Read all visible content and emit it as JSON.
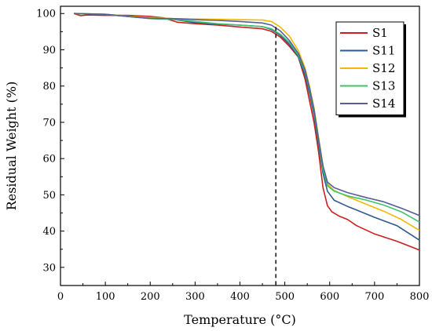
{
  "chart_data": {
    "type": "line",
    "xlabel": "Temperature (°C)",
    "ylabel": "Residual Weight (%)",
    "xlim": [
      0,
      800
    ],
    "ylim": [
      25,
      102
    ],
    "xticks": [
      0,
      100,
      200,
      300,
      400,
      500,
      600,
      700,
      800
    ],
    "yticks": [
      30,
      40,
      50,
      60,
      70,
      80,
      90,
      100
    ],
    "grid": false,
    "legend_position": "top-right",
    "reference_line": {
      "x": 480,
      "style": "dashed",
      "color": "#000000"
    },
    "series": [
      {
        "name": "S1",
        "color": "#cc1f1f",
        "points": [
          [
            30,
            100
          ],
          [
            45,
            99.4
          ],
          [
            60,
            99.6
          ],
          [
            100,
            99.5
          ],
          [
            150,
            99.5
          ],
          [
            200,
            99.2
          ],
          [
            230,
            98.8
          ],
          [
            260,
            97.6
          ],
          [
            300,
            97.2
          ],
          [
            350,
            96.8
          ],
          [
            400,
            96.3
          ],
          [
            450,
            95.8
          ],
          [
            470,
            95.1
          ],
          [
            490,
            93.5
          ],
          [
            510,
            91
          ],
          [
            530,
            88
          ],
          [
            545,
            82
          ],
          [
            555,
            76
          ],
          [
            565,
            70
          ],
          [
            575,
            62
          ],
          [
            585,
            52
          ],
          [
            595,
            47
          ],
          [
            605,
            45.3
          ],
          [
            620,
            44.2
          ],
          [
            640,
            43.2
          ],
          [
            660,
            41.5
          ],
          [
            700,
            39.2
          ],
          [
            750,
            37.2
          ],
          [
            800,
            34.8
          ]
        ]
      },
      {
        "name": "S11",
        "color": "#2e5a8f",
        "points": [
          [
            30,
            100
          ],
          [
            100,
            99.7
          ],
          [
            150,
            99.2
          ],
          [
            200,
            98.6
          ],
          [
            250,
            98.4
          ],
          [
            300,
            97.5
          ],
          [
            350,
            97.1
          ],
          [
            400,
            96.8
          ],
          [
            450,
            96.4
          ],
          [
            470,
            95.6
          ],
          [
            490,
            94
          ],
          [
            510,
            91.5
          ],
          [
            530,
            88
          ],
          [
            545,
            83
          ],
          [
            555,
            78
          ],
          [
            565,
            72
          ],
          [
            575,
            64
          ],
          [
            585,
            56
          ],
          [
            595,
            51
          ],
          [
            610,
            48.5
          ],
          [
            640,
            46.8
          ],
          [
            660,
            45.8
          ],
          [
            700,
            43.8
          ],
          [
            750,
            41.5
          ],
          [
            800,
            37.5
          ]
        ]
      },
      {
        "name": "S12",
        "color": "#f0b800",
        "points": [
          [
            30,
            100
          ],
          [
            100,
            99.8
          ],
          [
            150,
            99.3
          ],
          [
            200,
            98.9
          ],
          [
            250,
            98.6
          ],
          [
            300,
            98.5
          ],
          [
            350,
            98.4
          ],
          [
            400,
            98.3
          ],
          [
            450,
            98.2
          ],
          [
            470,
            97.8
          ],
          [
            490,
            96.3
          ],
          [
            510,
            93.8
          ],
          [
            530,
            89.8
          ],
          [
            545,
            85
          ],
          [
            555,
            80
          ],
          [
            565,
            74
          ],
          [
            575,
            66
          ],
          [
            585,
            58
          ],
          [
            595,
            53
          ],
          [
            610,
            51.2
          ],
          [
            640,
            49.5
          ],
          [
            680,
            47.5
          ],
          [
            720,
            45.5
          ],
          [
            760,
            43.2
          ],
          [
            800,
            40.2
          ]
        ]
      },
      {
        "name": "S13",
        "color": "#3cc46a",
        "points": [
          [
            30,
            100
          ],
          [
            100,
            99.8
          ],
          [
            150,
            99.2
          ],
          [
            200,
            98.6
          ],
          [
            250,
            98.4
          ],
          [
            300,
            97.8
          ],
          [
            350,
            97.2
          ],
          [
            400,
            96.8
          ],
          [
            450,
            96.4
          ],
          [
            470,
            95.8
          ],
          [
            490,
            94.3
          ],
          [
            510,
            92
          ],
          [
            530,
            88.5
          ],
          [
            545,
            84
          ],
          [
            555,
            79
          ],
          [
            565,
            73
          ],
          [
            575,
            65
          ],
          [
            585,
            57
          ],
          [
            595,
            52.5
          ],
          [
            610,
            51
          ],
          [
            640,
            49.7
          ],
          [
            680,
            48.6
          ],
          [
            720,
            47.2
          ],
          [
            760,
            45.3
          ],
          [
            800,
            42.5
          ]
        ]
      },
      {
        "name": "S14",
        "color": "#565e9a",
        "points": [
          [
            30,
            100
          ],
          [
            100,
            99.8
          ],
          [
            150,
            99.2
          ],
          [
            200,
            98.7
          ],
          [
            250,
            98.6
          ],
          [
            300,
            98.3
          ],
          [
            350,
            98.1
          ],
          [
            400,
            97.8
          ],
          [
            450,
            97.4
          ],
          [
            470,
            96.8
          ],
          [
            490,
            95.2
          ],
          [
            510,
            92.6
          ],
          [
            530,
            89
          ],
          [
            545,
            84.5
          ],
          [
            555,
            79.5
          ],
          [
            565,
            73.5
          ],
          [
            575,
            65.5
          ],
          [
            585,
            58
          ],
          [
            595,
            53.5
          ],
          [
            610,
            52
          ],
          [
            640,
            50.6
          ],
          [
            680,
            49.3
          ],
          [
            720,
            48.1
          ],
          [
            760,
            46.3
          ],
          [
            800,
            44.3
          ]
        ]
      }
    ]
  }
}
